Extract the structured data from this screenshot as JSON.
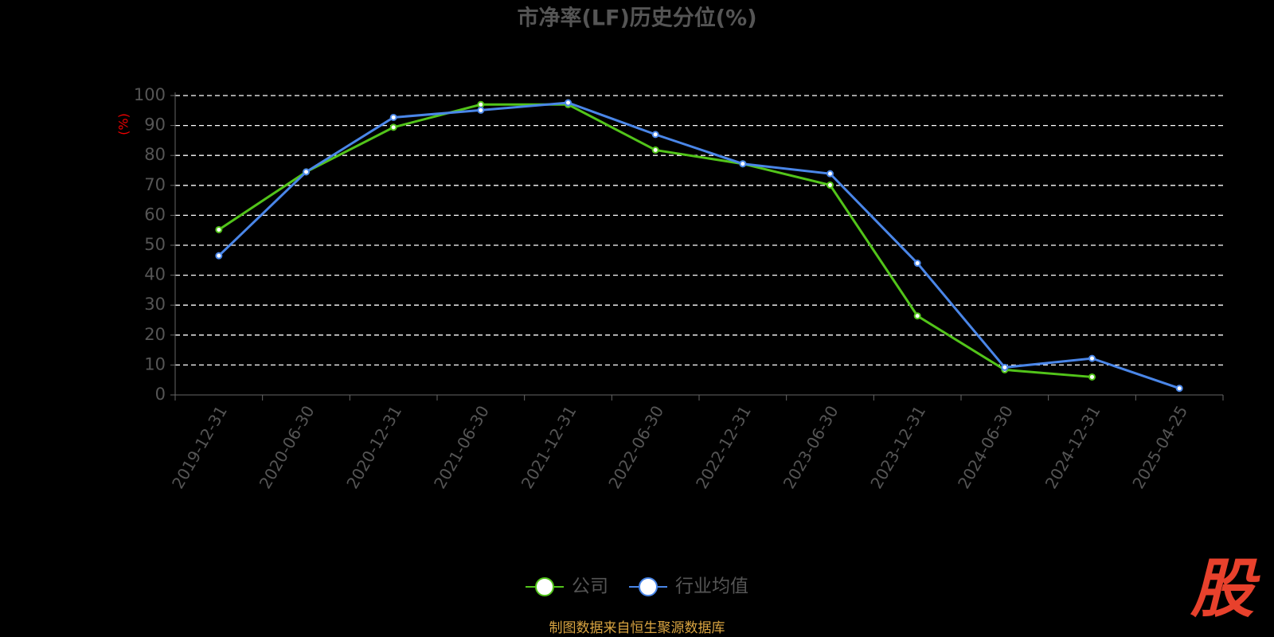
{
  "chart_data": {
    "type": "line",
    "title": "市净率(LF)历史分位(%)",
    "y_label": "(%)",
    "categories": [
      "2019-12-31",
      "2020-06-30",
      "2020-12-31",
      "2021-06-30",
      "2021-12-31",
      "2022-06-30",
      "2022-12-31",
      "2023-06-30",
      "2023-12-31",
      "2024-06-30",
      "2024-12-31",
      "2025-04-25"
    ],
    "series": [
      {
        "name": "公司",
        "color": "#52c41a",
        "values": [
          55.2,
          74.5,
          89.4,
          97.0,
          97.0,
          81.8,
          77.2,
          70.1,
          26.4,
          8.4,
          6.0,
          null
        ]
      },
      {
        "name": "行业均值",
        "color": "#4a86e8",
        "values": [
          46.5,
          74.5,
          92.7,
          95.1,
          97.6,
          87.0,
          77.2,
          73.9,
          44.0,
          9.2,
          12.2,
          2.2
        ]
      }
    ],
    "ylim": [
      0,
      100
    ],
    "yticks": [
      0,
      10,
      20,
      30,
      40,
      50,
      60,
      70,
      80,
      90,
      100
    ],
    "grid": true,
    "source": "制图数据来自恒生聚源数据库",
    "logo": "股"
  }
}
